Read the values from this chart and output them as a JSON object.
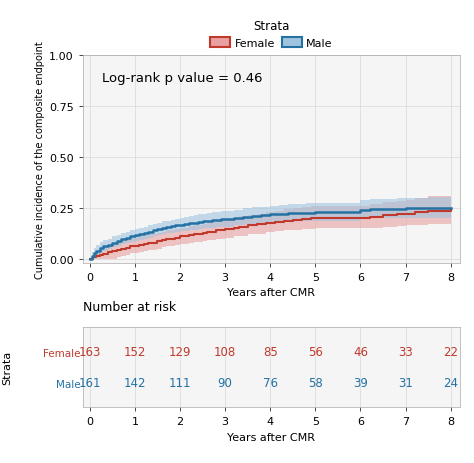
{
  "female_color": "#C0392B",
  "male_color": "#2471A3",
  "female_fill": "#E8A0A0",
  "male_fill": "#A0C4E0",
  "background_color": "#FFFFFF",
  "panel_bg": "#F5F5F5",
  "grid_color": "#DCDCDC",
  "annotation": "Log-rank p value = 0.46",
  "ylabel": "Cumulative incidence of the composite endpoint",
  "xlabel": "Years after CMR",
  "ylim": [
    -0.02,
    1.0
  ],
  "xlim": [
    -0.15,
    8.2
  ],
  "yticks": [
    0.0,
    0.25,
    0.5,
    0.75,
    1.0
  ],
  "xticks": [
    0,
    1,
    2,
    3,
    4,
    5,
    6,
    7,
    8
  ],
  "legend_title": "Strata",
  "female_label": "Female",
  "male_label": "Male",
  "female_at_risk": [
    163,
    152,
    129,
    108,
    85,
    56,
    46,
    33,
    22
  ],
  "male_at_risk": [
    161,
    142,
    111,
    90,
    76,
    58,
    39,
    31,
    24
  ],
  "at_risk_times": [
    0,
    1,
    2,
    3,
    4,
    5,
    6,
    7,
    8
  ],
  "female_x": [
    0.0,
    0.08,
    0.15,
    0.22,
    0.3,
    0.4,
    0.5,
    0.6,
    0.7,
    0.8,
    0.9,
    1.0,
    1.1,
    1.2,
    1.3,
    1.4,
    1.5,
    1.6,
    1.7,
    1.8,
    1.9,
    2.0,
    2.1,
    2.2,
    2.3,
    2.4,
    2.5,
    2.6,
    2.7,
    2.8,
    2.9,
    3.0,
    3.1,
    3.2,
    3.3,
    3.5,
    3.7,
    3.9,
    4.1,
    4.3,
    4.5,
    4.7,
    4.9,
    5.0,
    5.2,
    5.5,
    5.8,
    6.0,
    6.2,
    6.5,
    6.8,
    7.0,
    7.2,
    7.5,
    8.0
  ],
  "female_y": [
    0.0,
    0.006,
    0.012,
    0.018,
    0.024,
    0.03,
    0.036,
    0.042,
    0.048,
    0.054,
    0.06,
    0.06,
    0.066,
    0.072,
    0.078,
    0.078,
    0.084,
    0.09,
    0.096,
    0.096,
    0.102,
    0.108,
    0.108,
    0.114,
    0.12,
    0.12,
    0.126,
    0.132,
    0.132,
    0.138,
    0.138,
    0.144,
    0.144,
    0.15,
    0.156,
    0.162,
    0.168,
    0.174,
    0.18,
    0.186,
    0.19,
    0.194,
    0.198,
    0.2,
    0.2,
    0.2,
    0.2,
    0.2,
    0.206,
    0.212,
    0.218,
    0.22,
    0.226,
    0.232,
    0.24
  ],
  "female_ci_low": [
    0.0,
    0.0,
    0.0,
    0.0,
    0.0,
    0.0,
    0.0,
    0.006,
    0.012,
    0.018,
    0.025,
    0.025,
    0.03,
    0.036,
    0.042,
    0.042,
    0.048,
    0.055,
    0.06,
    0.06,
    0.066,
    0.072,
    0.072,
    0.076,
    0.082,
    0.082,
    0.087,
    0.093,
    0.093,
    0.098,
    0.098,
    0.103,
    0.103,
    0.108,
    0.112,
    0.118,
    0.122,
    0.128,
    0.133,
    0.138,
    0.141,
    0.144,
    0.147,
    0.148,
    0.148,
    0.148,
    0.148,
    0.148,
    0.152,
    0.156,
    0.161,
    0.162,
    0.166,
    0.17,
    0.16
  ],
  "female_ci_high": [
    0.0,
    0.02,
    0.032,
    0.044,
    0.058,
    0.068,
    0.078,
    0.084,
    0.09,
    0.096,
    0.1,
    0.1,
    0.108,
    0.114,
    0.12,
    0.12,
    0.126,
    0.132,
    0.138,
    0.138,
    0.144,
    0.15,
    0.15,
    0.158,
    0.164,
    0.164,
    0.17,
    0.178,
    0.178,
    0.185,
    0.185,
    0.192,
    0.192,
    0.2,
    0.207,
    0.214,
    0.22,
    0.227,
    0.234,
    0.242,
    0.248,
    0.252,
    0.258,
    0.26,
    0.26,
    0.26,
    0.26,
    0.26,
    0.268,
    0.276,
    0.282,
    0.286,
    0.295,
    0.305,
    0.325
  ],
  "male_x": [
    0.0,
    0.05,
    0.1,
    0.15,
    0.22,
    0.3,
    0.4,
    0.5,
    0.6,
    0.7,
    0.8,
    0.9,
    1.0,
    1.1,
    1.2,
    1.3,
    1.4,
    1.5,
    1.6,
    1.7,
    1.8,
    1.9,
    2.0,
    2.1,
    2.2,
    2.3,
    2.4,
    2.5,
    2.6,
    2.7,
    2.8,
    2.9,
    3.0,
    3.2,
    3.4,
    3.6,
    3.8,
    4.0,
    4.2,
    4.4,
    4.6,
    4.8,
    5.0,
    5.2,
    5.5,
    5.8,
    6.0,
    6.2,
    6.5,
    6.8,
    7.0,
    7.2,
    7.5,
    8.0
  ],
  "male_y": [
    0.0,
    0.012,
    0.025,
    0.037,
    0.05,
    0.06,
    0.068,
    0.078,
    0.086,
    0.094,
    0.102,
    0.108,
    0.114,
    0.12,
    0.126,
    0.132,
    0.138,
    0.144,
    0.15,
    0.154,
    0.158,
    0.162,
    0.166,
    0.17,
    0.173,
    0.176,
    0.18,
    0.183,
    0.186,
    0.188,
    0.19,
    0.192,
    0.195,
    0.2,
    0.205,
    0.21,
    0.213,
    0.217,
    0.22,
    0.222,
    0.224,
    0.225,
    0.226,
    0.226,
    0.226,
    0.226,
    0.24,
    0.242,
    0.244,
    0.245,
    0.246,
    0.246,
    0.247,
    0.248
  ],
  "male_ci_low": [
    0.0,
    0.0,
    0.005,
    0.016,
    0.028,
    0.038,
    0.046,
    0.055,
    0.062,
    0.069,
    0.077,
    0.082,
    0.087,
    0.093,
    0.098,
    0.103,
    0.108,
    0.114,
    0.119,
    0.123,
    0.126,
    0.13,
    0.133,
    0.137,
    0.14,
    0.142,
    0.145,
    0.148,
    0.15,
    0.152,
    0.154,
    0.155,
    0.157,
    0.162,
    0.166,
    0.17,
    0.173,
    0.176,
    0.179,
    0.181,
    0.182,
    0.183,
    0.184,
    0.184,
    0.184,
    0.184,
    0.196,
    0.197,
    0.198,
    0.198,
    0.198,
    0.198,
    0.197,
    0.185
  ],
  "male_ci_high": [
    0.0,
    0.03,
    0.05,
    0.064,
    0.08,
    0.09,
    0.098,
    0.108,
    0.116,
    0.124,
    0.132,
    0.138,
    0.144,
    0.15,
    0.156,
    0.162,
    0.168,
    0.175,
    0.182,
    0.186,
    0.19,
    0.195,
    0.2,
    0.205,
    0.208,
    0.212,
    0.217,
    0.22,
    0.224,
    0.226,
    0.228,
    0.231,
    0.234,
    0.24,
    0.246,
    0.252,
    0.255,
    0.26,
    0.263,
    0.265,
    0.268,
    0.27,
    0.27,
    0.27,
    0.27,
    0.27,
    0.287,
    0.29,
    0.294,
    0.296,
    0.298,
    0.298,
    0.302,
    0.315
  ]
}
